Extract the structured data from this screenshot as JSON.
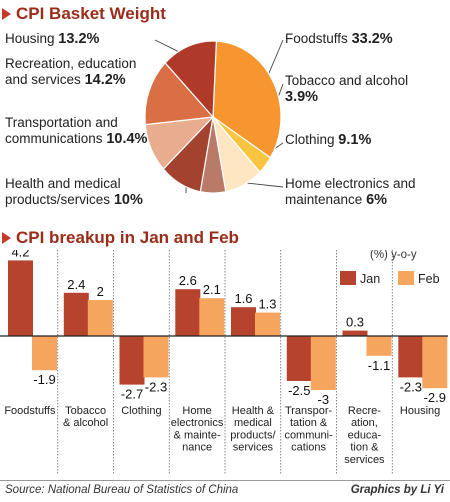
{
  "colors": {
    "jan": "#b5432e",
    "feb": "#f6a55e",
    "heading": "#9a2c1a",
    "triangle": "#c0392b"
  },
  "chart_data": [
    {
      "type": "pie",
      "title": "CPI Basket Weight",
      "slices": [
        {
          "label": "Foodstuffs",
          "value": 33.2,
          "value_text": "33.2%",
          "color": "#f7962f"
        },
        {
          "label": "Tobacco and alcohol",
          "value": 3.9,
          "value_text": "3.9%",
          "color": "#f9c440"
        },
        {
          "label": "Clothing",
          "value": 9.1,
          "value_text": "9.1%",
          "color": "#fde6c1"
        },
        {
          "label": "Home electronics and maintenance",
          "value": 6,
          "value_text": "6%",
          "color": "#b97b68"
        },
        {
          "label": "Health and medical products/services",
          "value": 10,
          "value_text": "10%",
          "color": "#a3432f"
        },
        {
          "label": "Transportation and communications",
          "value": 10.4,
          "value_text": "10.4%",
          "color": "#e8ad8f"
        },
        {
          "label": "Recreation, education and services",
          "value": 14.2,
          "value_text": "14.2%",
          "color": "#da6f45"
        },
        {
          "label": "Housing",
          "value": 13.2,
          "value_text": "13.2%",
          "color": "#b03a2a"
        }
      ]
    },
    {
      "type": "bar",
      "title": "CPI breakup in Jan and Feb",
      "unit_label": "(%) y-o-y",
      "legend_position": "top-right",
      "categories": [
        "Foodstuffs",
        "Tobacco & alcohol",
        "Clothing",
        "Home electronics & maintenance",
        "Health & medical products/ services",
        "Transportation & communications",
        "Recreation, education & services",
        "Housing"
      ],
      "category_lines": [
        [
          "Foodstuffs"
        ],
        [
          "Tobacco",
          "& alcohol"
        ],
        [
          "Clothing"
        ],
        [
          "Home",
          "electronics",
          "& mainte-",
          "nance"
        ],
        [
          "Health &",
          "medical",
          "products/",
          "services"
        ],
        [
          "Transpor-",
          "tation &",
          "communi-",
          "cations"
        ],
        [
          "Recre-",
          "ation,",
          "educa-",
          "tion &",
          "services"
        ],
        [
          "Housing"
        ]
      ],
      "series": [
        {
          "name": "Jan",
          "values": [
            4.2,
            2.4,
            -2.7,
            2.6,
            1.6,
            -2.5,
            0.3,
            -2.3
          ]
        },
        {
          "name": "Feb",
          "values": [
            -1.9,
            2,
            -2.3,
            2.1,
            1.3,
            -3,
            -1.1,
            -2.9
          ]
        }
      ],
      "value_labels": {
        "Jan": [
          "4.2",
          "2.4",
          "-2.7",
          "2.6",
          "1.6",
          "-2.5",
          "0.3",
          "-2.3"
        ],
        "Feb": [
          "-1.9",
          "2",
          "-2.3",
          "2.1",
          "1.3",
          "-3",
          "-1.1",
          "-2.9"
        ]
      }
    }
  ],
  "footer": {
    "source": "Source: National Bureau of Statistics of China",
    "credit": "Graphics by Li Yi"
  }
}
